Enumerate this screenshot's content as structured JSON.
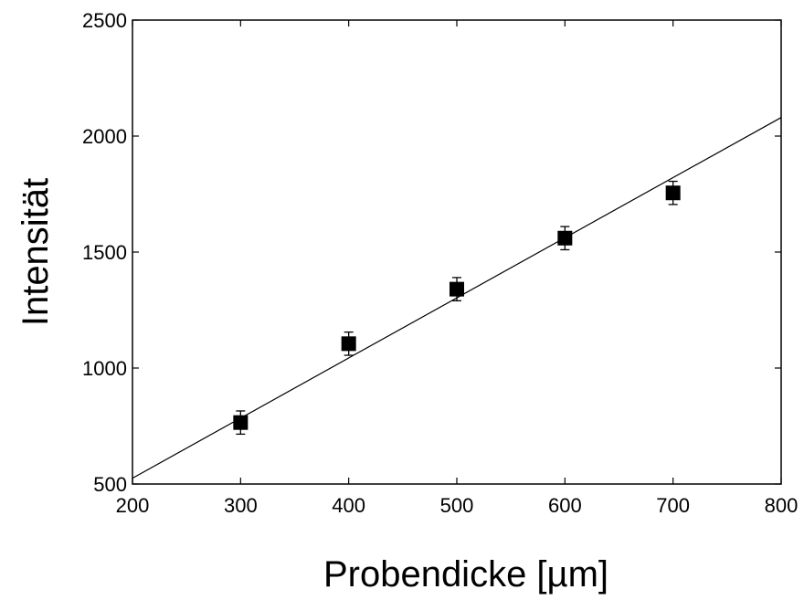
{
  "chart_data": {
    "type": "scatter",
    "xlabel": "Probendicke [µm]",
    "ylabel": "Intensität",
    "xlim": [
      200,
      800
    ],
    "ylim": [
      500,
      2500
    ],
    "x_ticks": [
      200,
      300,
      400,
      500,
      600,
      700,
      800
    ],
    "y_ticks": [
      500,
      1000,
      1500,
      2000,
      2500
    ],
    "grid": false,
    "legend": "none",
    "series": [
      {
        "type": "scatter",
        "marker": "square",
        "color": "#000000",
        "points": [
          {
            "x": 300,
            "y": 765,
            "error": 50
          },
          {
            "x": 400,
            "y": 1105,
            "error": 50
          },
          {
            "x": 500,
            "y": 1340,
            "error": 50
          },
          {
            "x": 600,
            "y": 1560,
            "error": 50
          },
          {
            "x": 700,
            "y": 1755,
            "error": 50
          }
        ]
      },
      {
        "type": "line",
        "color": "#000000",
        "points": [
          {
            "x": 200,
            "y": 525
          },
          {
            "x": 800,
            "y": 2080
          }
        ]
      }
    ]
  }
}
